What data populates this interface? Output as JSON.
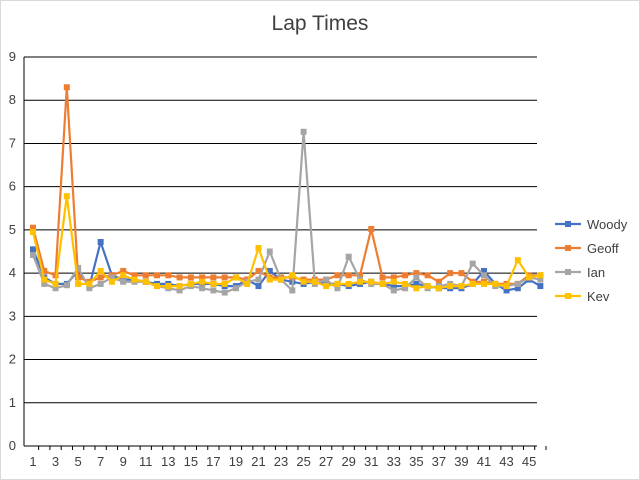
{
  "chart_data": {
    "type": "line",
    "title": "Lap Times",
    "xlabel": "",
    "ylabel": "",
    "ylim": [
      0,
      9
    ],
    "yticks": [
      0,
      1,
      2,
      3,
      4,
      5,
      6,
      7,
      8,
      9
    ],
    "x": [
      1,
      2,
      3,
      4,
      5,
      6,
      7,
      8,
      9,
      10,
      11,
      12,
      13,
      14,
      15,
      16,
      17,
      18,
      19,
      20,
      21,
      22,
      23,
      24,
      25,
      26,
      27,
      28,
      29,
      30,
      31,
      32,
      33,
      34,
      35,
      36,
      37,
      38,
      39,
      40,
      41,
      42,
      43,
      44,
      45,
      46
    ],
    "xtick_labels": [
      1,
      3,
      5,
      7,
      9,
      11,
      13,
      15,
      17,
      19,
      21,
      23,
      25,
      27,
      29,
      31,
      33,
      35,
      37,
      39,
      41,
      43,
      45
    ],
    "grid": true,
    "legend_position": "right",
    "series": [
      {
        "name": "Woody",
        "color": "#4472C4",
        "values": [
          4.55,
          3.9,
          3.75,
          3.75,
          4.05,
          3.7,
          4.72,
          3.95,
          3.85,
          3.85,
          3.8,
          3.75,
          3.75,
          3.7,
          3.75,
          3.75,
          3.75,
          3.7,
          3.7,
          3.85,
          3.7,
          4.05,
          3.85,
          3.8,
          3.75,
          3.8,
          3.75,
          3.75,
          3.7,
          3.75,
          3.8,
          3.75,
          3.7,
          3.7,
          3.75,
          3.7,
          3.65,
          3.65,
          3.65,
          3.75,
          4.05,
          3.75,
          3.6,
          3.65,
          3.85,
          3.7
        ]
      },
      {
        "name": "Geoff",
        "color": "#ED7D31",
        "values": [
          5.05,
          4.05,
          3.95,
          8.3,
          3.9,
          3.8,
          3.9,
          3.95,
          4.05,
          3.95,
          3.95,
          3.95,
          3.95,
          3.9,
          3.9,
          3.9,
          3.9,
          3.9,
          3.9,
          3.85,
          4.05,
          3.9,
          3.9,
          3.9,
          3.85,
          3.85,
          3.85,
          3.95,
          3.95,
          3.95,
          5.02,
          3.9,
          3.9,
          3.95,
          4.0,
          3.95,
          3.8,
          4.0,
          4.0,
          3.8,
          3.8,
          3.75,
          3.75,
          3.75,
          3.95,
          3.95
        ]
      },
      {
        "name": "Ian",
        "color": "#A5A5A5",
        "values": [
          4.42,
          3.75,
          3.65,
          3.72,
          4.12,
          3.65,
          3.75,
          3.9,
          3.8,
          3.8,
          3.8,
          3.7,
          3.65,
          3.6,
          3.7,
          3.65,
          3.6,
          3.55,
          3.65,
          3.8,
          3.85,
          4.5,
          3.85,
          3.6,
          7.27,
          3.75,
          3.85,
          3.65,
          4.38,
          3.85,
          3.75,
          3.75,
          3.6,
          3.65,
          3.9,
          3.65,
          3.7,
          3.75,
          3.7,
          4.22,
          3.95,
          3.7,
          3.7,
          3.75,
          3.9,
          3.85
        ]
      },
      {
        "name": "Kev",
        "color": "#FFC000",
        "values": [
          4.95,
          3.85,
          3.75,
          5.78,
          3.75,
          3.75,
          4.05,
          3.8,
          3.95,
          3.85,
          3.8,
          3.7,
          3.7,
          3.7,
          3.75,
          3.8,
          3.75,
          3.75,
          3.9,
          3.75,
          4.58,
          3.85,
          3.85,
          3.95,
          3.8,
          3.8,
          3.7,
          3.75,
          3.75,
          3.8,
          3.8,
          3.75,
          3.8,
          3.75,
          3.65,
          3.7,
          3.65,
          3.7,
          3.7,
          3.75,
          3.75,
          3.75,
          3.7,
          4.3,
          3.9,
          3.95
        ]
      }
    ]
  }
}
